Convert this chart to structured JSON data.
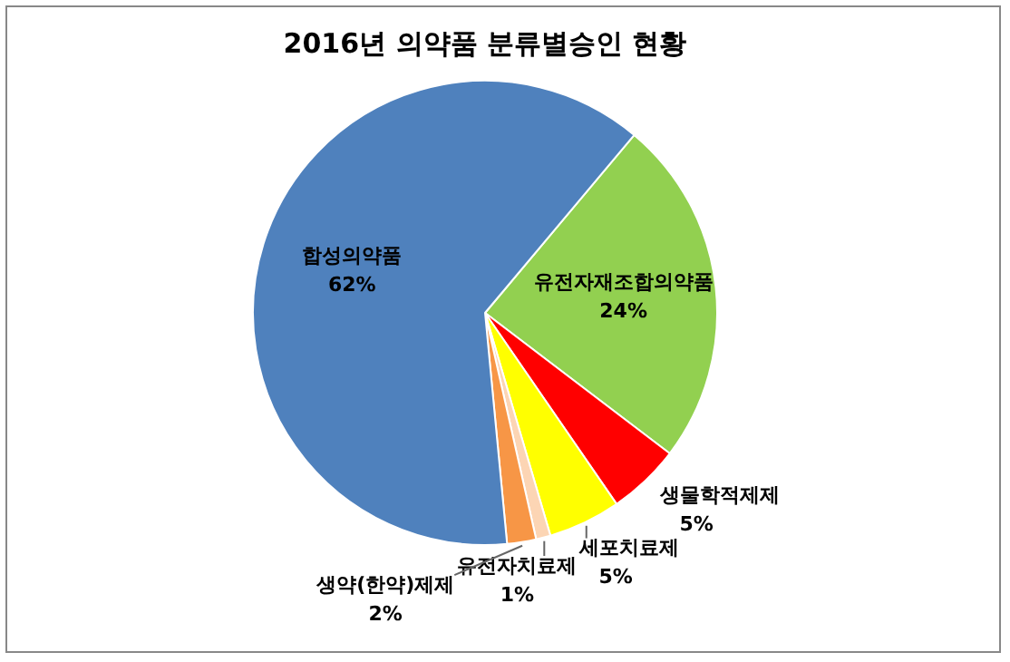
{
  "chart_data": {
    "type": "pie",
    "title": "2016년 의약품 분류별승인 현황",
    "categories": [
      "유전자재조합의약품",
      "생물학적제제",
      "세포치료제",
      "유전자치료제",
      "생약(한약)제제",
      "합성의약품"
    ],
    "values": [
      24,
      5,
      5,
      1,
      2,
      62
    ],
    "colors": [
      "#92d050",
      "#ff0000",
      "#ffff00",
      "#fcd5b4",
      "#f79646",
      "#4f81bd"
    ],
    "value_labels": [
      "24%",
      "5%",
      "5%",
      "1%",
      "2%",
      "62%"
    ],
    "legend": false
  }
}
